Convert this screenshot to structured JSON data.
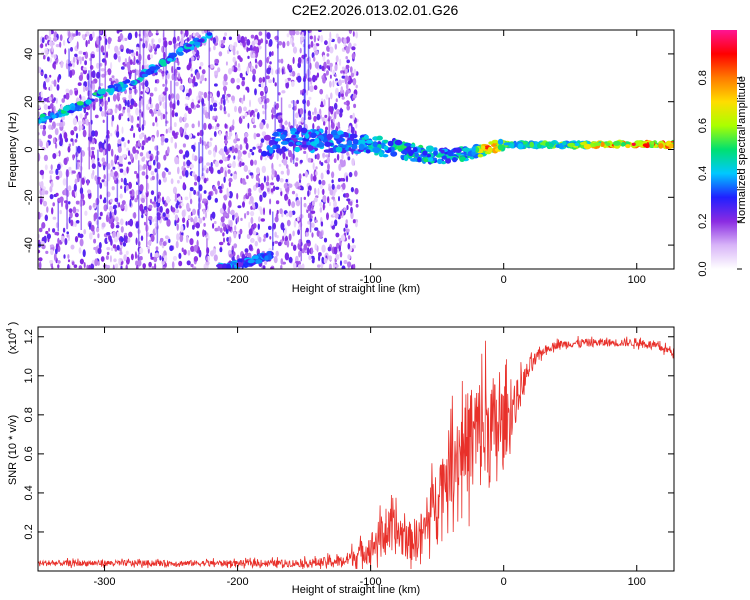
{
  "title": "C2E2.2026.013.02.01.G26",
  "chart_data": [
    {
      "type": "heatmap",
      "xlabel": "Height of straight line (km)",
      "ylabel": "Frequency (Hz)",
      "xlim": [
        -350,
        128
      ],
      "ylim": [
        -50,
        50
      ],
      "xticks": [
        -300,
        -200,
        -100,
        0,
        100
      ],
      "xtick_labels": [
        "-300",
        "-200",
        "-100",
        "0",
        "100"
      ],
      "yticks": [
        -40,
        -20,
        0,
        20,
        40
      ],
      "ytick_labels": [
        "-40",
        "-20",
        "0",
        "20",
        "40"
      ],
      "colorbar": {
        "label": "Normalized spectral amplitude",
        "range": [
          0,
          1
        ],
        "ticks": [
          0.0,
          0.2,
          0.4,
          0.6,
          0.8
        ],
        "tick_labels": [
          "0.0",
          "0.2",
          "0.4",
          "0.6",
          "0.8"
        ],
        "colormap": [
          "#ffffff",
          "#d8b4f8",
          "#8a2be2",
          "#2020ff",
          "#00c8ff",
          "#00e070",
          "#aaff00",
          "#ffdd00",
          "#ff7a00",
          "#ff0000",
          "#ff1493"
        ]
      },
      "features": [
        {
          "name": "main-carrier",
          "x": [
            -180,
            -150,
            -120,
            -100,
            -80,
            -60,
            -40,
            -20,
            -10,
            0,
            20,
            50,
            80,
            100,
            128
          ],
          "freq": [
            3,
            4,
            3,
            2,
            0,
            -2,
            -3,
            -1,
            1,
            2,
            2,
            2,
            2,
            2,
            2
          ],
          "amplitude": [
            0.35,
            0.4,
            0.42,
            0.45,
            0.5,
            0.5,
            0.45,
            0.6,
            0.9,
            0.6,
            0.55,
            0.6,
            0.85,
            0.95,
            0.85
          ]
        },
        {
          "name": "drifting-line-lower",
          "x": [
            -350,
            -320,
            -300,
            -280,
            -260,
            -240,
            -220
          ],
          "freq": [
            12,
            18,
            24,
            28,
            35,
            42,
            48
          ],
          "amplitude": [
            0.5,
            0.5,
            0.5,
            0.45,
            0.45,
            0.45,
            0.4
          ]
        },
        {
          "name": "drifting-line-bottom",
          "x": [
            -215,
            -200,
            -185,
            -175
          ],
          "freq": [
            -50,
            -48,
            -46,
            -44
          ],
          "amplitude": [
            0.4,
            0.4,
            0.4,
            0.35
          ]
        }
      ]
    },
    {
      "type": "line",
      "xlabel": "Height of straight line (km)",
      "ylabel": "SNR (10 * v/v)",
      "multiplier_base": "x10",
      "multiplier_exp": "4",
      "xlim": [
        -350,
        128
      ],
      "ylim": [
        0,
        1.25
      ],
      "xticks": [
        -300,
        -200,
        -100,
        0,
        100
      ],
      "xtick_labels": [
        "-300",
        "-200",
        "-100",
        "0",
        "100"
      ],
      "yticks": [
        0.2,
        0.4,
        0.6,
        0.8,
        1.0,
        1.2
      ],
      "ytick_labels": [
        "0.2",
        "0.4",
        "0.6",
        "0.8",
        "1.0",
        "1.2"
      ],
      "line_color": "#e8302a",
      "x": [
        -350,
        -300,
        -250,
        -200,
        -150,
        -120,
        -100,
        -90,
        -80,
        -70,
        -60,
        -50,
        -40,
        -30,
        -20,
        -10,
        0,
        10,
        20,
        30,
        40,
        60,
        80,
        100,
        110,
        120,
        128
      ],
      "y": [
        0.04,
        0.04,
        0.04,
        0.04,
        0.04,
        0.05,
        0.12,
        0.2,
        0.2,
        0.15,
        0.2,
        0.4,
        0.55,
        0.65,
        0.7,
        0.72,
        0.75,
        0.88,
        1.05,
        1.13,
        1.16,
        1.17,
        1.17,
        1.17,
        1.16,
        1.14,
        1.12
      ],
      "noise": [
        0.015,
        0.015,
        0.015,
        0.015,
        0.02,
        0.03,
        0.08,
        0.1,
        0.12,
        0.1,
        0.12,
        0.15,
        0.2,
        0.25,
        0.3,
        0.3,
        0.2,
        0.1,
        0.05,
        0.02,
        0.02,
        0.02,
        0.02,
        0.02,
        0.02,
        0.02,
        0.02
      ]
    }
  ]
}
